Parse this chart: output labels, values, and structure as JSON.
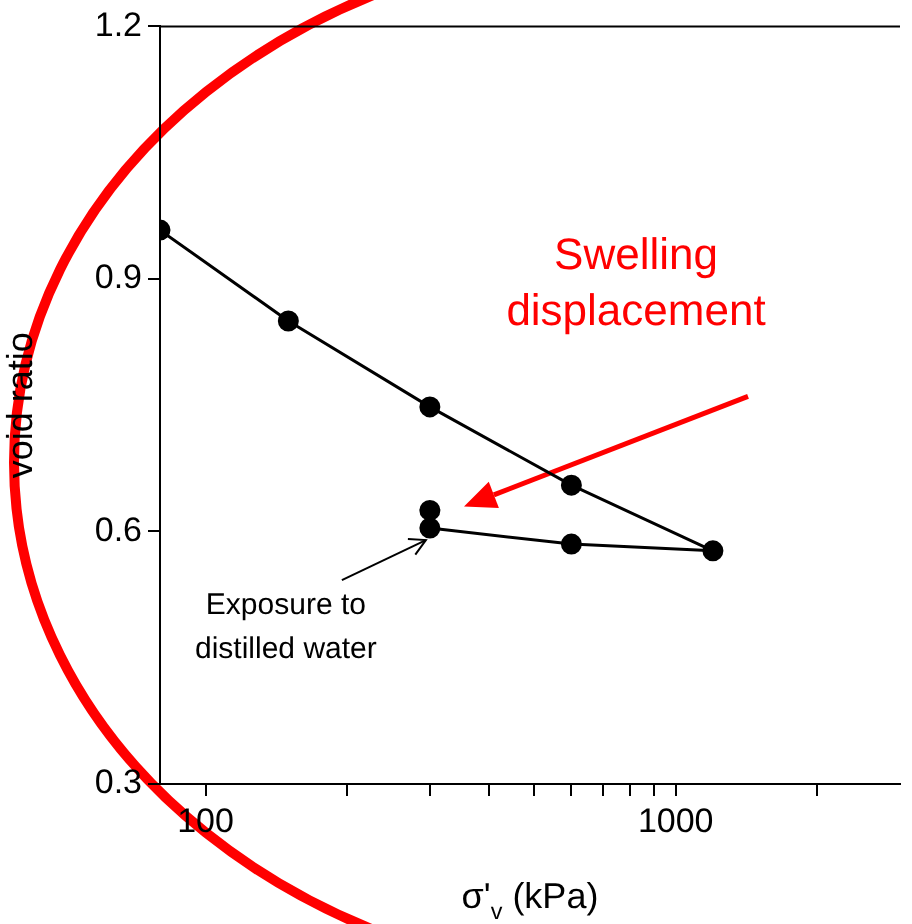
{
  "chart_data": {
    "type": "line",
    "xlabel": "σ'$_{v}$ (kPa)",
    "ylabel": "void ratio",
    "x": [
      80,
      150,
      300,
      600,
      1200,
      600,
      300,
      300
    ],
    "series": [
      {
        "color": "#000000",
        "values": [
          0.958,
          0.85,
          0.748,
          0.655,
          0.577,
          0.585,
          0.604,
          0.625
        ]
      }
    ],
    "log": "x",
    "xlim": [
      80,
      3000
    ],
    "xticks": [
      100,
      {
        "value": 200,
        "label": null
      },
      {
        "value": 300,
        "label": null
      },
      {
        "value": 400,
        "label": null
      },
      {
        "value": 500,
        "label": null
      },
      {
        "value": 600,
        "label": null
      },
      {
        "value": 700,
        "label": null
      },
      {
        "value": 800,
        "label": null
      },
      {
        "value": 900,
        "label": null
      },
      1000,
      {
        "value": 2000,
        "label": null
      }
    ],
    "ylim": [
      0.3,
      1.2
    ],
    "yticks": [
      {
        "value": 0.3,
        "label": "0.3"
      },
      {
        "value": 0.6,
        "label": "0.6"
      },
      {
        "value": 0.9,
        "label": "0.9"
      },
      {
        "value": 1.2,
        "label": "1.2"
      }
    ],
    "grid": false,
    "legend": false,
    "marker": "circle",
    "line_style": "solid",
    "annotations": [
      "Swelling displacement",
      {
        "text": "Exposure to distilled water",
        "x": 300,
        "y": 0.604
      }
    ]
  }
}
